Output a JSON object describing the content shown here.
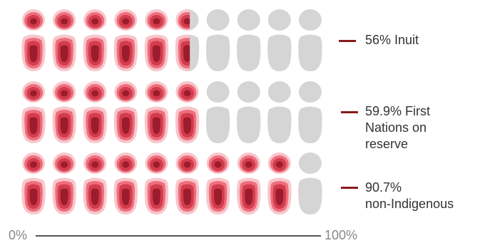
{
  "chart_data": {
    "type": "pictograph",
    "icons_per_row": 10,
    "series": [
      {
        "name": "Inuit",
        "value": 56,
        "label": "56% Inuit"
      },
      {
        "name": "First Nations on reserve",
        "value": 59.9,
        "label": "59.9% First\nNations on\nreserve"
      },
      {
        "name": "non-Indigenous",
        "value": 90.7,
        "label": "90.7%\nnon-Indigenous"
      }
    ],
    "axis": {
      "min_label": "0%",
      "max_label": "100%",
      "xlim": [
        0,
        100
      ]
    }
  },
  "colors": {
    "filled_outer": "#f7c6cc",
    "filled_mid": "#ee6e7c",
    "filled_inner": "#d23c4c",
    "filled_core": "#9b1c2c",
    "empty": "#d5d5d5",
    "dash": "#8b1a1a"
  }
}
